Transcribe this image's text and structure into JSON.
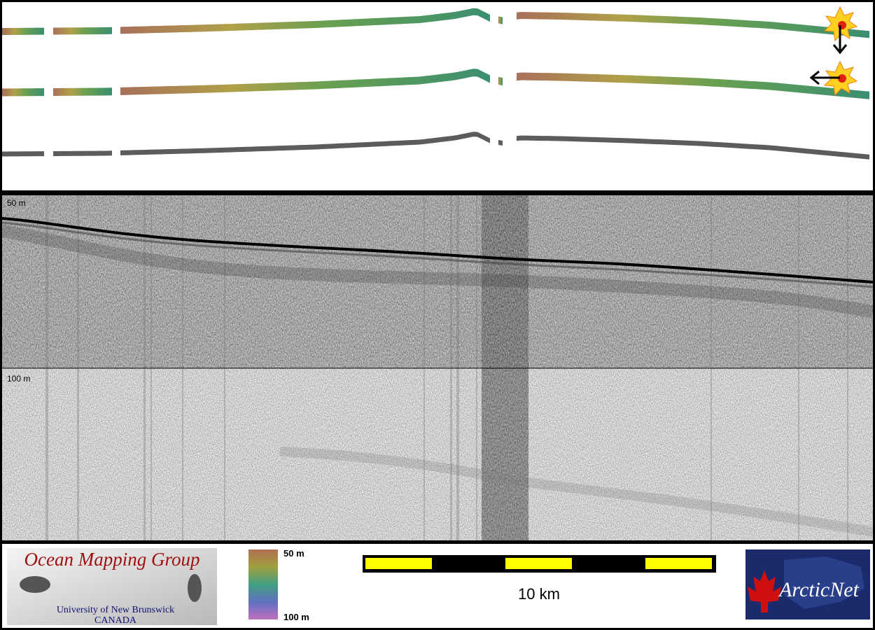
{
  "profile": {
    "depth_labels": [
      "50 m",
      "100 m"
    ]
  },
  "footer": {
    "logo_left": {
      "title": "Ocean Mapping Group",
      "subtitle": "University of New Brunswick",
      "country": "CANADA"
    },
    "depth_scale": {
      "top": "50 m",
      "bottom": "100 m"
    },
    "scale_bar": {
      "label": "10 km"
    },
    "logo_right": {
      "title": "ArcticNet"
    }
  }
}
